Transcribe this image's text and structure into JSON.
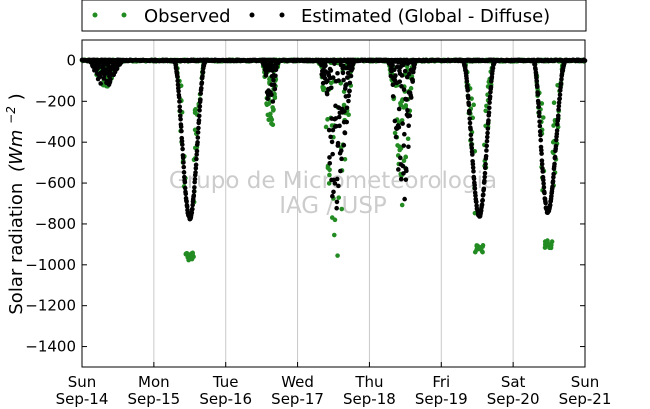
{
  "chart_data": {
    "type": "scatter",
    "ylabel": "Solar radiation",
    "ylabel_unit_base": "(Wm",
    "ylabel_unit_exp": "−2",
    "ylabel_unit_close": ")",
    "ylim": [
      -1500,
      100
    ],
    "xlim": [
      0,
      7
    ],
    "yticks": [
      {
        "value": 0,
        "label": "0"
      },
      {
        "value": -200,
        "label": "−200"
      },
      {
        "value": -400,
        "label": "−400"
      },
      {
        "value": -600,
        "label": "−600"
      },
      {
        "value": -800,
        "label": "−800"
      },
      {
        "value": -1000,
        "label": "−1000"
      },
      {
        "value": -1200,
        "label": "−1200"
      },
      {
        "value": -1400,
        "label": "−1400"
      }
    ],
    "xticks": [
      {
        "value": 0,
        "day": "Sun",
        "date": "Sep-14"
      },
      {
        "value": 1,
        "day": "Mon",
        "date": "Sep-15"
      },
      {
        "value": 2,
        "day": "Tue",
        "date": "Sep-16"
      },
      {
        "value": 3,
        "day": "Wed",
        "date": "Sep-17"
      },
      {
        "value": 4,
        "day": "Thu",
        "date": "Sep-18"
      },
      {
        "value": 5,
        "day": "Fri",
        "date": "Sep-19"
      },
      {
        "value": 6,
        "day": "Sat",
        "date": "Sep-20"
      },
      {
        "value": 7,
        "day": "Sun",
        "date": "Sep-21"
      }
    ],
    "grid": "vertical",
    "legend_position": "top",
    "watermark": [
      "Grupo de Micrometeorologia",
      "IAG / USP"
    ],
    "series": [
      {
        "name": "Observed",
        "color": "#228b22"
      },
      {
        "name": "Estimated (Global - Diffuse)",
        "color": "#000000"
      }
    ],
    "days": [
      {
        "start": 0.08,
        "peak_t": 0.3,
        "end": 0.6,
        "peak_est": -140,
        "obs_peak": -140,
        "obs_spread": 20,
        "pattern": "cloudy"
      },
      {
        "start": 1.28,
        "peak_t": 1.5,
        "end": 1.72,
        "peak_est": -770,
        "obs_peak": -960,
        "obs_spread": 40,
        "pattern": "clear"
      },
      {
        "start": 2.5,
        "peak_t": 2.62,
        "end": 2.75,
        "peak_est": -280,
        "obs_peak": -380,
        "obs_spread": 60,
        "pattern": "cloudy"
      },
      {
        "start": 3.28,
        "peak_t": 3.55,
        "end": 3.8,
        "peak_est": -800,
        "obs_peak": -1000,
        "obs_spread": 120,
        "pattern": "cloudy"
      },
      {
        "start": 4.25,
        "peak_t": 4.47,
        "end": 4.65,
        "peak_est": -700,
        "obs_peak": -720,
        "obs_spread": 120,
        "pattern": "cloudy"
      },
      {
        "start": 5.3,
        "peak_t": 5.53,
        "end": 5.75,
        "peak_est": -760,
        "obs_peak": -920,
        "obs_spread": 40,
        "pattern": "clear"
      },
      {
        "start": 6.28,
        "peak_t": 6.48,
        "end": 6.73,
        "peak_est": -740,
        "obs_peak": -900,
        "obs_spread": 40,
        "pattern": "clear"
      }
    ]
  }
}
